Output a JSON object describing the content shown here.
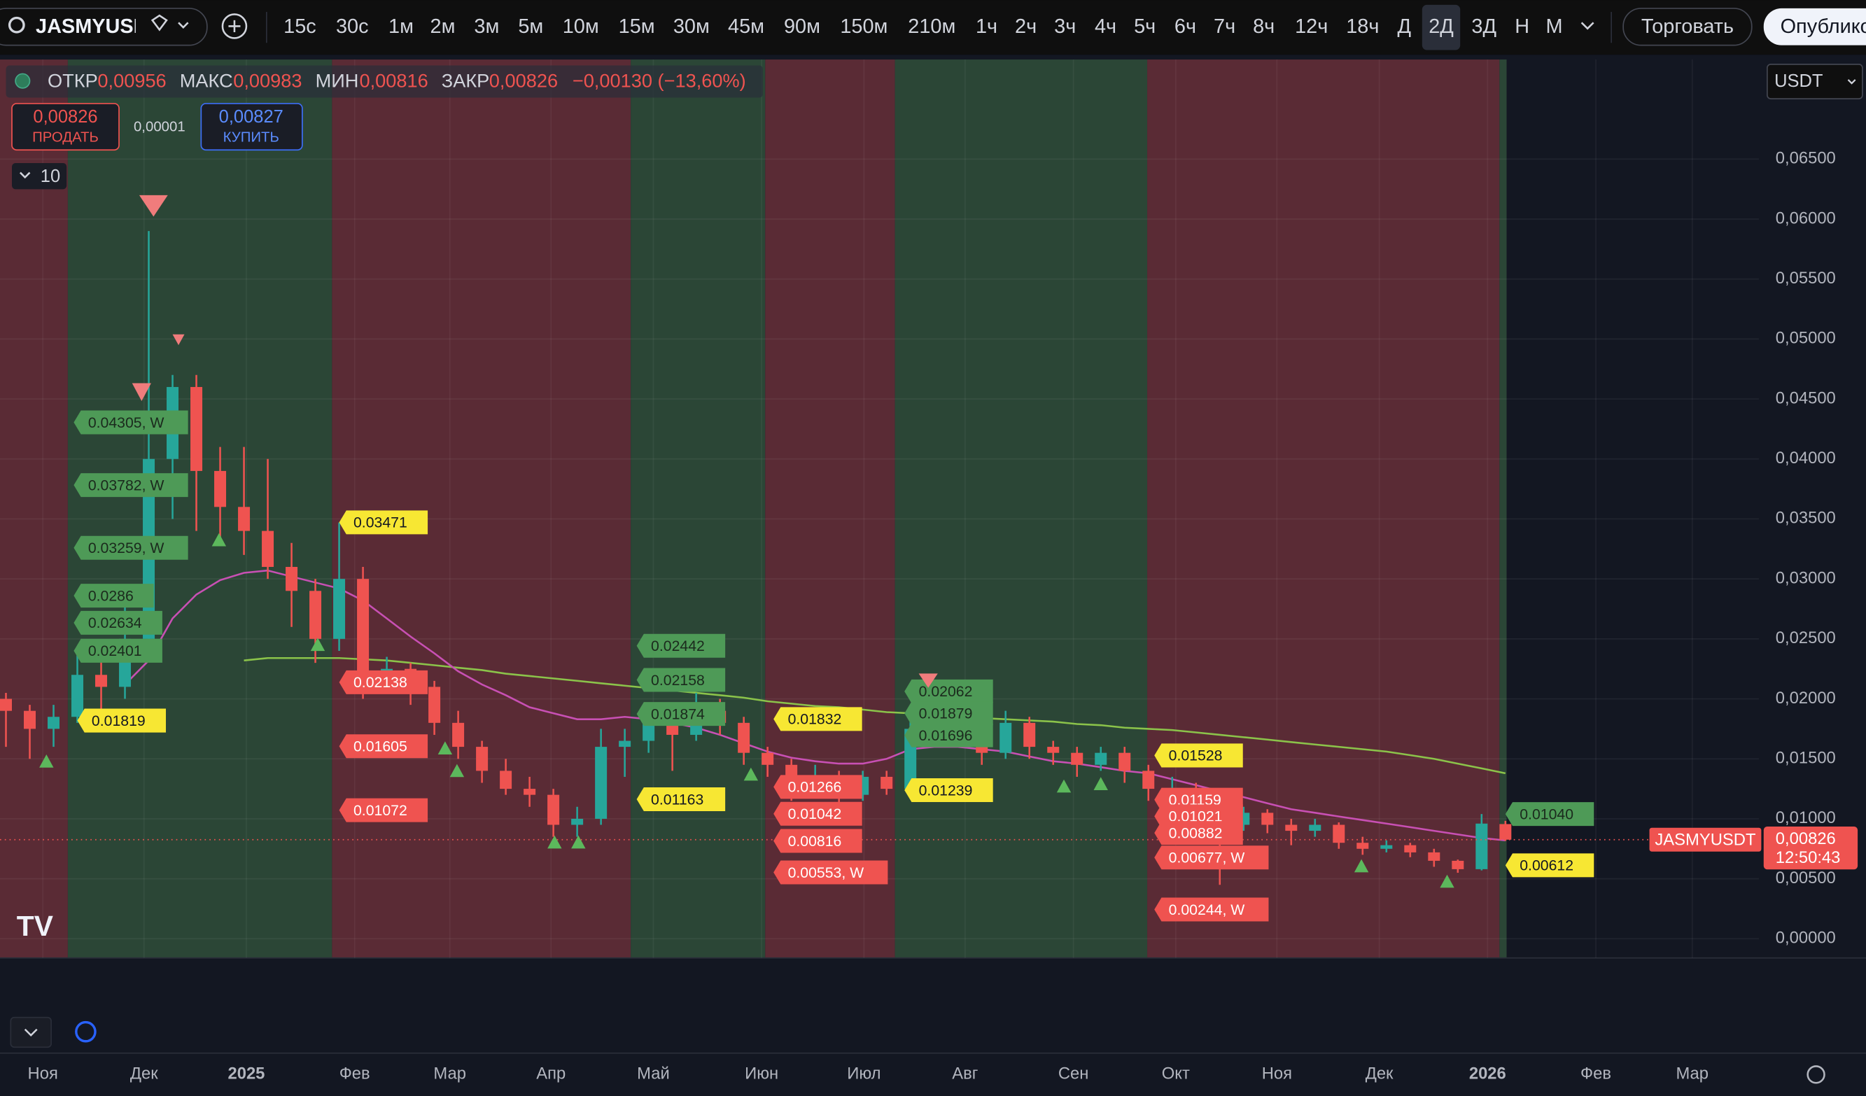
{
  "toolbar": {
    "symbol": "JASMYUSDT",
    "intervals": [
      "15с",
      "30с",
      "1м",
      "2м",
      "3м",
      "5м",
      "10м",
      "15м",
      "30м",
      "45м",
      "90м",
      "150м",
      "210м",
      "1ч",
      "2ч",
      "3ч",
      "4ч",
      "5ч",
      "6ч",
      "7ч",
      "8ч",
      "12ч",
      "18ч",
      "Д",
      "2Д",
      "3Д",
      "Н",
      "М"
    ],
    "active_interval": "2Д",
    "trade": "Торговать",
    "publish": "Опубликовать"
  },
  "legend": {
    "open_label": "ОТКР",
    "open": "0,00956",
    "high_label": "МАКС",
    "high": "0,00983",
    "low_label": "МИН",
    "low": "0,00816",
    "close_label": "ЗАКР",
    "close": "0,00826",
    "change": "−0,00130 (−13,60%)"
  },
  "trade_panel": {
    "sell_price": "0,00826",
    "sell": "ПРОДАТЬ",
    "spread": "0,00001",
    "buy_price": "0,00827",
    "buy": "КУПИТЬ"
  },
  "indicators_count": "10",
  "currency": "USDT",
  "chart": {
    "type": "candlestick",
    "ylim": [
      -0.0016,
      0.0733
    ],
    "yticks": [
      {
        "value": 0,
        "label": "0,00000"
      },
      {
        "value": 0.005,
        "label": "0,00500"
      },
      {
        "value": 0.01,
        "label": "0,01000"
      },
      {
        "value": 0.015,
        "label": "0,01500"
      },
      {
        "value": 0.02,
        "label": "0,02000"
      },
      {
        "value": 0.025,
        "label": "0,02500"
      },
      {
        "value": 0.03,
        "label": "0,03000"
      },
      {
        "value": 0.035,
        "label": "0,03500"
      },
      {
        "value": 0.04,
        "label": "0,04000"
      },
      {
        "value": 0.045,
        "label": "0,04500"
      },
      {
        "value": 0.05,
        "label": "0,05000"
      },
      {
        "value": 0.055,
        "label": "0,05500"
      },
      {
        "value": 0.06,
        "label": "0,06000"
      },
      {
        "value": 0.065,
        "label": "0,06500"
      }
    ],
    "x_labels": [
      "Ноя",
      "Дек",
      "2025",
      "Фев",
      "Мар",
      "Апр",
      "Май",
      "Июн",
      "Июл",
      "Авг",
      "Сен",
      "Окт",
      "Ноя",
      "Дек",
      "2026",
      "Фев",
      "Мар"
    ],
    "up_color": "#26a69a",
    "down_color": "#ef5350",
    "candles": [
      [
        0.02,
        0.0205,
        0.016,
        0.019
      ],
      [
        0.019,
        0.0195,
        0.015,
        0.0175
      ],
      [
        0.0175,
        0.0195,
        0.016,
        0.0185
      ],
      [
        0.0185,
        0.024,
        0.018,
        0.022
      ],
      [
        0.022,
        0.024,
        0.019,
        0.021
      ],
      [
        0.021,
        0.029,
        0.02,
        0.025
      ],
      [
        0.025,
        0.059,
        0.024,
        0.04
      ],
      [
        0.04,
        0.047,
        0.035,
        0.046
      ],
      [
        0.046,
        0.047,
        0.034,
        0.039
      ],
      [
        0.039,
        0.041,
        0.033,
        0.036
      ],
      [
        0.036,
        0.041,
        0.032,
        0.034
      ],
      [
        0.034,
        0.04,
        0.03,
        0.031
      ],
      [
        0.031,
        0.033,
        0.026,
        0.029
      ],
      [
        0.029,
        0.03,
        0.023,
        0.025
      ],
      [
        0.025,
        0.0347,
        0.024,
        0.03
      ],
      [
        0.03,
        0.031,
        0.02,
        0.0215
      ],
      [
        0.0215,
        0.0235,
        0.0205,
        0.0225
      ],
      [
        0.0225,
        0.023,
        0.0195,
        0.021
      ],
      [
        0.021,
        0.0215,
        0.017,
        0.018
      ],
      [
        0.018,
        0.019,
        0.015,
        0.016
      ],
      [
        0.016,
        0.0165,
        0.013,
        0.014
      ],
      [
        0.014,
        0.015,
        0.012,
        0.0125
      ],
      [
        0.0125,
        0.0135,
        0.011,
        0.012
      ],
      [
        0.012,
        0.0125,
        0.0085,
        0.0095
      ],
      [
        0.0095,
        0.011,
        0.0085,
        0.01
      ],
      [
        0.01,
        0.0175,
        0.0095,
        0.016
      ],
      [
        0.016,
        0.0175,
        0.0135,
        0.0165
      ],
      [
        0.0165,
        0.0195,
        0.0155,
        0.018
      ],
      [
        0.018,
        0.019,
        0.014,
        0.017
      ],
      [
        0.017,
        0.0205,
        0.0165,
        0.019
      ],
      [
        0.019,
        0.02,
        0.017,
        0.018
      ],
      [
        0.018,
        0.0185,
        0.0145,
        0.0155
      ],
      [
        0.0155,
        0.016,
        0.0135,
        0.0145
      ],
      [
        0.0145,
        0.015,
        0.0115,
        0.013
      ],
      [
        0.013,
        0.0145,
        0.012,
        0.0135
      ],
      [
        0.0135,
        0.014,
        0.011,
        0.012
      ],
      [
        0.012,
        0.014,
        0.0115,
        0.0135
      ],
      [
        0.0135,
        0.014,
        0.012,
        0.0125
      ],
      [
        0.0125,
        0.0185,
        0.012,
        0.0175
      ],
      [
        0.0175,
        0.021,
        0.0165,
        0.019
      ],
      [
        0.019,
        0.0195,
        0.016,
        0.0175
      ],
      [
        0.0175,
        0.018,
        0.0145,
        0.0155
      ],
      [
        0.0155,
        0.019,
        0.015,
        0.018
      ],
      [
        0.018,
        0.0185,
        0.015,
        0.016
      ],
      [
        0.016,
        0.0165,
        0.0145,
        0.0155
      ],
      [
        0.0155,
        0.016,
        0.0135,
        0.0145
      ],
      [
        0.0145,
        0.016,
        0.014,
        0.0155
      ],
      [
        0.0155,
        0.016,
        0.013,
        0.014
      ],
      [
        0.014,
        0.0145,
        0.0115,
        0.0125
      ],
      [
        0.0125,
        0.0135,
        0.0115,
        0.0125
      ],
      [
        0.0125,
        0.013,
        0.01,
        0.0115
      ],
      [
        0.0115,
        0.012,
        0.0045,
        0.0095
      ],
      [
        0.0095,
        0.011,
        0.009,
        0.0105
      ],
      [
        0.0105,
        0.0108,
        0.0088,
        0.0095
      ],
      [
        0.0095,
        0.01,
        0.0078,
        0.009
      ],
      [
        0.009,
        0.01,
        0.0085,
        0.0095
      ],
      [
        0.0095,
        0.0097,
        0.0075,
        0.008
      ],
      [
        0.008,
        0.0085,
        0.007,
        0.0075
      ],
      [
        0.0075,
        0.0082,
        0.0072,
        0.0078
      ],
      [
        0.0078,
        0.008,
        0.0068,
        0.0072
      ],
      [
        0.0072,
        0.0075,
        0.006,
        0.0065
      ],
      [
        0.0065,
        0.0066,
        0.0055,
        0.0058
      ],
      [
        0.0058,
        0.0104,
        0.0057,
        0.0096
      ],
      [
        0.00956,
        0.00983,
        0.00816,
        0.00826
      ]
    ],
    "ma_short": {
      "color": "#c850b4",
      "values": [
        null,
        null,
        null,
        null,
        null,
        0.0212,
        0.0232,
        0.0267,
        0.0287,
        0.0299,
        0.0305,
        0.0307,
        0.0302,
        0.0297,
        0.0292,
        0.0282,
        0.0267,
        0.0252,
        0.0238,
        0.0223,
        0.0212,
        0.0203,
        0.0193,
        0.0188,
        0.0183,
        0.0183,
        0.0185,
        0.0183,
        0.018,
        0.0176,
        0.017,
        0.0163,
        0.0156,
        0.0151,
        0.0148,
        0.0146,
        0.0146,
        0.015,
        0.0158,
        0.016,
        0.016,
        0.0158,
        0.0156,
        0.0152,
        0.0148,
        0.0146,
        0.0143,
        0.014,
        0.0138,
        0.0133,
        0.0128,
        0.0123,
        0.0118,
        0.0113,
        0.0108,
        0.0105,
        0.0102,
        0.0099,
        0.0096,
        0.0093,
        0.009,
        0.0087,
        0.0084,
        0.0082
      ]
    },
    "ma_long": {
      "color": "#8bc34a",
      "values": [
        null,
        null,
        null,
        null,
        null,
        null,
        null,
        null,
        null,
        null,
        0.0232,
        0.0234,
        0.0234,
        0.0234,
        0.0234,
        0.0233,
        0.0232,
        0.023,
        0.0228,
        0.0226,
        0.0224,
        0.0221,
        0.0219,
        0.0217,
        0.0215,
        0.0213,
        0.0211,
        0.0209,
        0.0207,
        0.0205,
        0.0203,
        0.0201,
        0.0198,
        0.0196,
        0.0194,
        0.0193,
        0.0191,
        0.0189,
        0.0188,
        0.0187,
        0.0185,
        0.0184,
        0.0183,
        0.0182,
        0.0181,
        0.0179,
        0.0178,
        0.0176,
        0.0175,
        0.0174,
        0.0172,
        0.017,
        0.0168,
        0.0166,
        0.0164,
        0.0162,
        0.016,
        0.0158,
        0.0156,
        0.0153,
        0.015,
        0.0146,
        0.0142,
        0.0138
      ]
    },
    "last_price": {
      "value": 0.00826,
      "symbol": "JASMYUSDT",
      "label": "0,00826",
      "countdown": "12:50:43"
    },
    "tag_groups": [
      {
        "style": "green",
        "tags": [
          {
            "value": 0.04305,
            "label": "0.04305, W"
          },
          {
            "value": 0.03782,
            "label": "0.03782, W"
          },
          {
            "value": 0.03259,
            "label": "0.03259, W"
          },
          {
            "value": 0.0286,
            "label": "0.0286"
          },
          {
            "value": 0.02634,
            "label": "0.02634"
          },
          {
            "value": 0.02401,
            "label": "0.02401"
          }
        ]
      },
      {
        "style": "yellow",
        "tags": [
          {
            "value": 0.01819,
            "label": "0.01819"
          }
        ]
      },
      {
        "style": "yellow",
        "tags": [
          {
            "value": 0.03471,
            "label": "0.03471"
          }
        ]
      },
      {
        "style": "red",
        "tags": [
          {
            "value": 0.02138,
            "label": "0.02138"
          },
          {
            "value": 0.01605,
            "label": "0.01605"
          },
          {
            "value": 0.01072,
            "label": "0.01072"
          }
        ]
      },
      {
        "style": "green",
        "tags": [
          {
            "value": 0.02442,
            "label": "0.02442"
          },
          {
            "value": 0.02158,
            "label": "0.02158"
          },
          {
            "value": 0.01874,
            "label": "0.01874"
          }
        ]
      },
      {
        "style": "yellow",
        "tags": [
          {
            "value": 0.01832,
            "label": "0.01832"
          }
        ]
      },
      {
        "style": "yellow",
        "tags": [
          {
            "value": 0.01163,
            "label": "0.01163"
          }
        ]
      },
      {
        "style": "red",
        "tags": [
          {
            "value": 0.01266,
            "label": "0.01266"
          },
          {
            "value": 0.01042,
            "label": "0.01042"
          },
          {
            "value": 0.00816,
            "label": "0.00816"
          },
          {
            "value": 0.00553,
            "label": "0.00553, W"
          }
        ]
      },
      {
        "style": "green",
        "tags": [
          {
            "value": 0.02062,
            "label": "0.02062"
          },
          {
            "value": 0.01879,
            "label": "0.01879"
          },
          {
            "value": 0.01696,
            "label": "0.01696"
          }
        ]
      },
      {
        "style": "yellow",
        "tags": [
          {
            "value": 0.01239,
            "label": "0.01239"
          }
        ]
      },
      {
        "style": "yellow",
        "tags": [
          {
            "value": 0.01528,
            "label": "0.01528"
          }
        ]
      },
      {
        "style": "red",
        "tags": [
          {
            "value": 0.01159,
            "label": "0.01159"
          },
          {
            "value": 0.01021,
            "label": "0.01021"
          },
          {
            "value": 0.00882,
            "label": "0.00882"
          },
          {
            "value": 0.00677,
            "label": "0.00677, W"
          },
          {
            "value": 0.00244,
            "label": "0.00244, W"
          }
        ]
      },
      {
        "style": "green",
        "tags": [
          {
            "value": 0.0104,
            "label": "0.01040"
          }
        ]
      },
      {
        "style": "yellow",
        "tags": [
          {
            "value": 0.00612,
            "label": "0.00612"
          }
        ]
      }
    ]
  }
}
